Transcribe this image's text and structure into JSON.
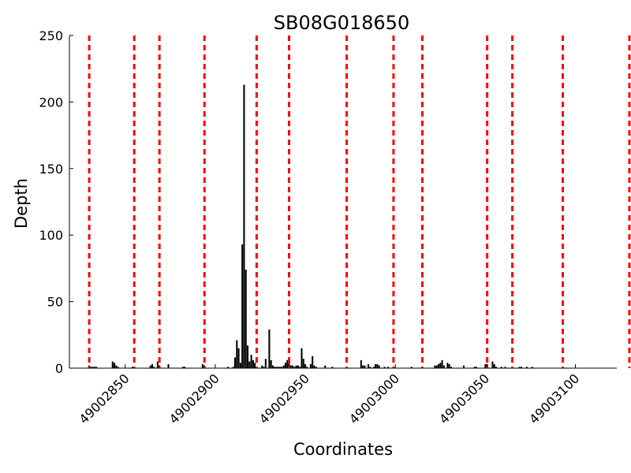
{
  "chart_data": {
    "type": "bar",
    "title": "SB08G018650",
    "xlabel": "Coordinates",
    "ylabel": "Depth",
    "xlim": [
      48002819,
      49003123
    ],
    "ylim": [
      0,
      250
    ],
    "xlim_note": "",
    "yticks": [
      0,
      50,
      100,
      150,
      200,
      250
    ],
    "xticks": [
      49002850,
      49002900,
      49002950,
      49003000,
      49003050,
      49003100
    ],
    "grid": false,
    "bar_color": "#000000",
    "boundary_color": "#ff0000",
    "boundaries": [
      49002830,
      49002855,
      49002869,
      49002894,
      49002923,
      49002941,
      49002973,
      49002999,
      49003015,
      49003051,
      49003065,
      49003093,
      49003130
    ],
    "coverage": [
      {
        "x": 49002830,
        "y": 2
      },
      {
        "x": 49002831,
        "y": 1
      },
      {
        "x": 49002832,
        "y": 1
      },
      {
        "x": 49002833,
        "y": 1
      },
      {
        "x": 49002834,
        "y": 1
      },
      {
        "x": 49002843,
        "y": 5
      },
      {
        "x": 49002844,
        "y": 4
      },
      {
        "x": 49002845,
        "y": 2
      },
      {
        "x": 49002846,
        "y": 1
      },
      {
        "x": 49002854,
        "y": 1
      },
      {
        "x": 49002855,
        "y": 1
      },
      {
        "x": 49002864,
        "y": 2
      },
      {
        "x": 49002865,
        "y": 3
      },
      {
        "x": 49002866,
        "y": 1
      },
      {
        "x": 49002868,
        "y": 5
      },
      {
        "x": 49002869,
        "y": 2
      },
      {
        "x": 49002874,
        "y": 3
      },
      {
        "x": 49002882,
        "y": 1
      },
      {
        "x": 49002883,
        "y": 1
      },
      {
        "x": 49002893,
        "y": 3
      },
      {
        "x": 49002894,
        "y": 2
      },
      {
        "x": 49002907,
        "y": 1
      },
      {
        "x": 49002910,
        "y": 1
      },
      {
        "x": 49002911,
        "y": 8
      },
      {
        "x": 49002912,
        "y": 21
      },
      {
        "x": 49002913,
        "y": 15
      },
      {
        "x": 49002914,
        "y": 4
      },
      {
        "x": 49002915,
        "y": 93
      },
      {
        "x": 49002916,
        "y": 213
      },
      {
        "x": 49002917,
        "y": 74
      },
      {
        "x": 49002918,
        "y": 17
      },
      {
        "x": 49002919,
        "y": 5
      },
      {
        "x": 49002920,
        "y": 10
      },
      {
        "x": 49002921,
        "y": 6
      },
      {
        "x": 49002922,
        "y": 4
      },
      {
        "x": 49002923,
        "y": 1
      },
      {
        "x": 49002926,
        "y": 2
      },
      {
        "x": 49002927,
        "y": 1
      },
      {
        "x": 49002928,
        "y": 7
      },
      {
        "x": 49002930,
        "y": 29
      },
      {
        "x": 49002931,
        "y": 6
      },
      {
        "x": 49002932,
        "y": 2
      },
      {
        "x": 49002933,
        "y": 1
      },
      {
        "x": 49002934,
        "y": 1
      },
      {
        "x": 49002935,
        "y": 1
      },
      {
        "x": 49002936,
        "y": 1
      },
      {
        "x": 49002937,
        "y": 1
      },
      {
        "x": 49002938,
        "y": 2
      },
      {
        "x": 49002939,
        "y": 4
      },
      {
        "x": 49002940,
        "y": 6
      },
      {
        "x": 49002941,
        "y": 4
      },
      {
        "x": 49002942,
        "y": 2
      },
      {
        "x": 49002943,
        "y": 2
      },
      {
        "x": 49002944,
        "y": 1
      },
      {
        "x": 49002945,
        "y": 2
      },
      {
        "x": 49002946,
        "y": 2
      },
      {
        "x": 49002947,
        "y": 1
      },
      {
        "x": 49002948,
        "y": 15
      },
      {
        "x": 49002949,
        "y": 7
      },
      {
        "x": 49002950,
        "y": 3
      },
      {
        "x": 49002951,
        "y": 1
      },
      {
        "x": 49002953,
        "y": 3
      },
      {
        "x": 49002954,
        "y": 9
      },
      {
        "x": 49002955,
        "y": 2
      },
      {
        "x": 49002956,
        "y": 1
      },
      {
        "x": 49002961,
        "y": 2
      },
      {
        "x": 49002965,
        "y": 1
      },
      {
        "x": 49002981,
        "y": 6
      },
      {
        "x": 49002982,
        "y": 2
      },
      {
        "x": 49002983,
        "y": 2
      },
      {
        "x": 49002985,
        "y": 3
      },
      {
        "x": 49002986,
        "y": 1
      },
      {
        "x": 49002988,
        "y": 1
      },
      {
        "x": 49002989,
        "y": 3
      },
      {
        "x": 49002990,
        "y": 3
      },
      {
        "x": 49002991,
        "y": 2
      },
      {
        "x": 49002994,
        "y": 1
      },
      {
        "x": 49002996,
        "y": 1
      },
      {
        "x": 49003009,
        "y": 1
      },
      {
        "x": 49003022,
        "y": 2
      },
      {
        "x": 49003023,
        "y": 2
      },
      {
        "x": 49003024,
        "y": 3
      },
      {
        "x": 49003025,
        "y": 4
      },
      {
        "x": 49003026,
        "y": 6
      },
      {
        "x": 49003027,
        "y": 2
      },
      {
        "x": 49003029,
        "y": 4
      },
      {
        "x": 49003030,
        "y": 3
      },
      {
        "x": 49003031,
        "y": 1
      },
      {
        "x": 49003038,
        "y": 2
      },
      {
        "x": 49003044,
        "y": 1
      },
      {
        "x": 49003045,
        "y": 1
      },
      {
        "x": 49003050,
        "y": 3
      },
      {
        "x": 49003051,
        "y": 3
      },
      {
        "x": 49003054,
        "y": 5
      },
      {
        "x": 49003055,
        "y": 3
      },
      {
        "x": 49003056,
        "y": 1
      },
      {
        "x": 49003059,
        "y": 1
      },
      {
        "x": 49003061,
        "y": 1
      },
      {
        "x": 49003069,
        "y": 1
      },
      {
        "x": 49003070,
        "y": 1
      },
      {
        "x": 49003073,
        "y": 1
      },
      {
        "x": 49003076,
        "y": 1
      }
    ]
  }
}
